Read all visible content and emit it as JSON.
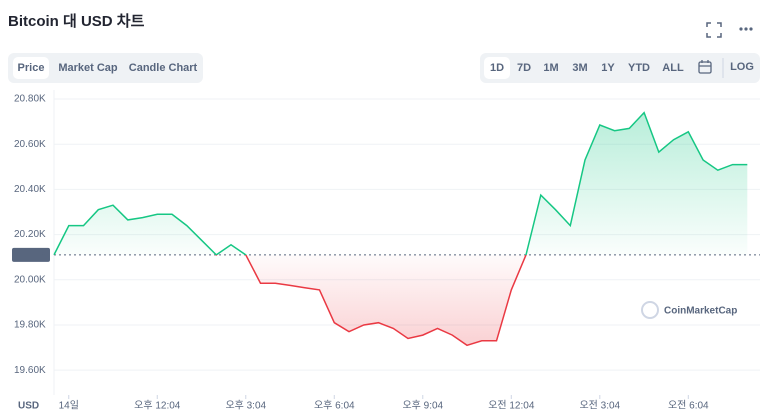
{
  "header": {
    "title": "Bitcoin 대 USD 차트"
  },
  "tabs": {
    "items": [
      "Price",
      "Market Cap",
      "Candle Chart"
    ],
    "active": 0
  },
  "ranges": {
    "items": [
      "1D",
      "7D",
      "1M",
      "3M",
      "1Y",
      "YTD",
      "ALL"
    ],
    "active": 0,
    "log": "LOG"
  },
  "watermark": "CoinMarketCap",
  "chart_data": {
    "type": "line",
    "values": [
      20110,
      20240,
      20240,
      20310,
      20330,
      20265,
      20275,
      20290,
      20290,
      20240,
      20175,
      20110,
      20155,
      20110,
      19985,
      19985,
      19975,
      19965,
      19955,
      19810,
      19770,
      19800,
      19810,
      19785,
      19740,
      19755,
      19785,
      19755,
      19710,
      19730,
      19730,
      19955,
      20110,
      20375,
      20310,
      20240,
      20530,
      20685,
      20660,
      20670,
      20740,
      20565,
      20620,
      20655,
      20530,
      20485,
      20510,
      20510
    ],
    "reference": {
      "value": 20110,
      "label": "20.11K"
    },
    "up_color": "#16c784",
    "down_color": "#ea3943",
    "xlim": [
      0,
      47.86
    ],
    "xticks": [
      {
        "value": 1,
        "label": "14일"
      },
      {
        "value": 7,
        "label": "오후 12:04"
      },
      {
        "value": 13,
        "label": "오후 3:04"
      },
      {
        "value": 19,
        "label": "오후 6:04"
      },
      {
        "value": 25,
        "label": "오후 9:04"
      },
      {
        "value": 31,
        "label": "오전 12:04"
      },
      {
        "value": 37,
        "label": "오전 3:04"
      },
      {
        "value": 43,
        "label": "오전 6:04"
      }
    ],
    "ylim": [
      19490,
      20840
    ],
    "yticks": [
      {
        "value": 19600,
        "label": "19.60K"
      },
      {
        "value": 19800,
        "label": "19.80K"
      },
      {
        "value": 20000,
        "label": "20.00K"
      },
      {
        "value": 20200,
        "label": "20.20K"
      },
      {
        "value": 20400,
        "label": "20.40K"
      },
      {
        "value": 20600,
        "label": "20.60K"
      },
      {
        "value": 20800,
        "label": "20.80K"
      }
    ],
    "currency": "USD",
    "grid": true
  }
}
